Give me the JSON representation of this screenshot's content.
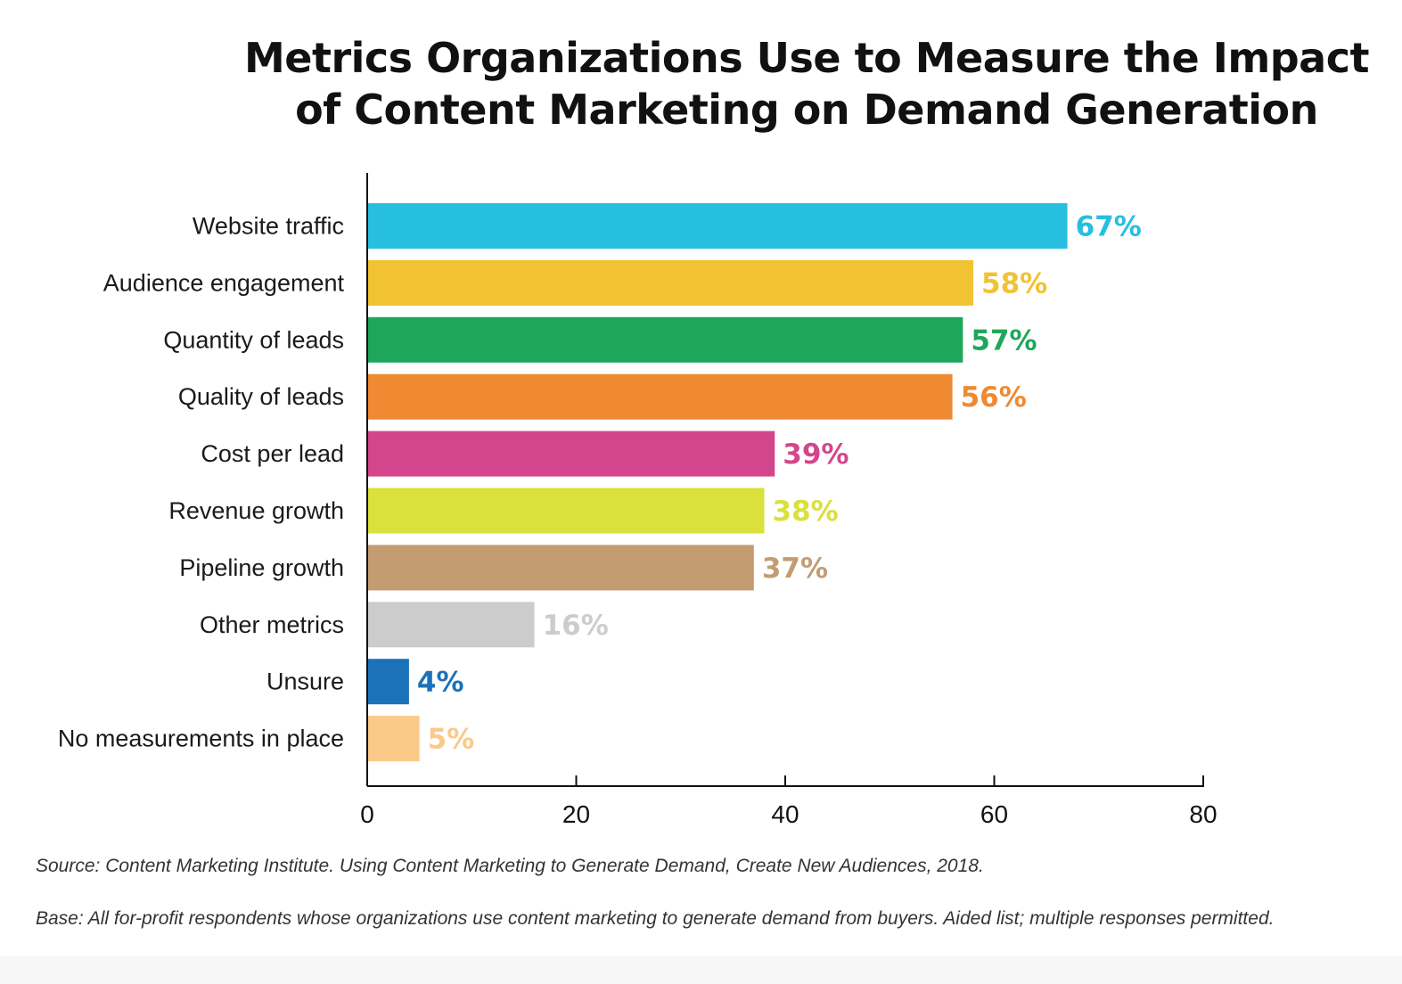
{
  "chart_data": {
    "type": "bar",
    "orientation": "horizontal",
    "title_lines": [
      "Metrics Organizations Use to Measure the Impact",
      "of Content Marketing on Demand Generation"
    ],
    "categories": [
      "Website traffic",
      "Audience engagement",
      "Quantity of leads",
      "Quality of leads",
      "Cost per lead",
      "Revenue growth",
      "Pipeline growth",
      "Other metrics",
      "Unsure",
      "No measurements in place"
    ],
    "values": [
      67,
      58,
      57,
      56,
      39,
      38,
      37,
      16,
      4,
      5
    ],
    "value_labels": [
      "67%",
      "58%",
      "57%",
      "56%",
      "39%",
      "38%",
      "37%",
      "16%",
      "4%",
      "5%"
    ],
    "colors": [
      "#27bfdf",
      "#f1c232",
      "#1ea75b",
      "#ef8a32",
      "#d4468b",
      "#dae03c",
      "#c49c72",
      "#cccccc",
      "#1b72b9",
      "#fbc98a"
    ],
    "xlim": [
      0,
      80
    ],
    "xticks": [
      0,
      20,
      40,
      60,
      80
    ],
    "xtick_labels": [
      "0",
      "20",
      "40",
      "60",
      "80"
    ],
    "grid": false,
    "xlabel": "",
    "ylabel": ""
  },
  "footnotes": {
    "source": "Source: Content Marketing Institute. Using Content Marketing to Generate Demand, Create New Audiences, 2018.",
    "base": "Base: All for-profit respondents whose organizations use content marketing to generate demand from buyers. Aided list; multiple responses permitted."
  }
}
